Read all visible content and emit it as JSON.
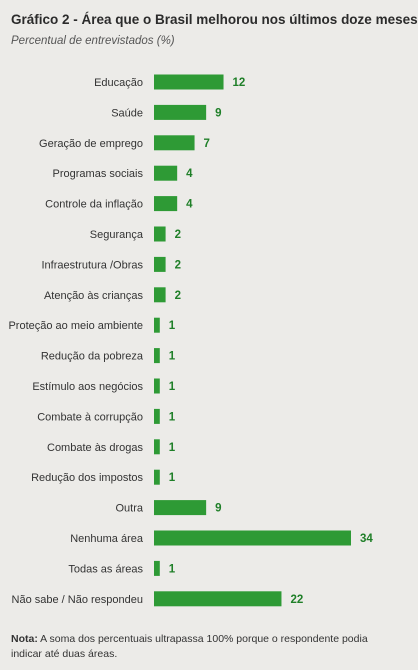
{
  "title": "Gráfico 2  - Área que o Brasil melhorou nos últimos doze meses",
  "subtitle": "Percentual de entrevistados (%)",
  "note": {
    "label": "Nota:",
    "text": " A soma dos percentuais ultrapassa 100% porque o respondente podia indicar até duas áreas."
  },
  "colors": {
    "bar": "#2e9a35",
    "value": "#1f7f28",
    "background": "#ecebe8"
  },
  "chart_data": {
    "type": "bar",
    "orientation": "horizontal",
    "categories": [
      "Educação",
      "Saúde",
      "Geração de emprego",
      "Programas sociais",
      "Controle da inflação",
      "Segurança",
      "Infraestrutura /Obras",
      "Atenção às crianças",
      "Proteção ao meio ambiente",
      "Redução da pobreza",
      "Estímulo aos negócios",
      "Combate à corrupção",
      "Combate às drogas",
      "Redução dos impostos",
      "Outra",
      "Nenhuma área",
      "Todas as áreas",
      "Não sabe / Não respondeu"
    ],
    "values": [
      12,
      9,
      7,
      4,
      4,
      2,
      2,
      2,
      1,
      1,
      1,
      1,
      1,
      1,
      9,
      34,
      1,
      22
    ],
    "xlim": [
      0,
      34
    ],
    "grid": false,
    "legend": "none"
  }
}
